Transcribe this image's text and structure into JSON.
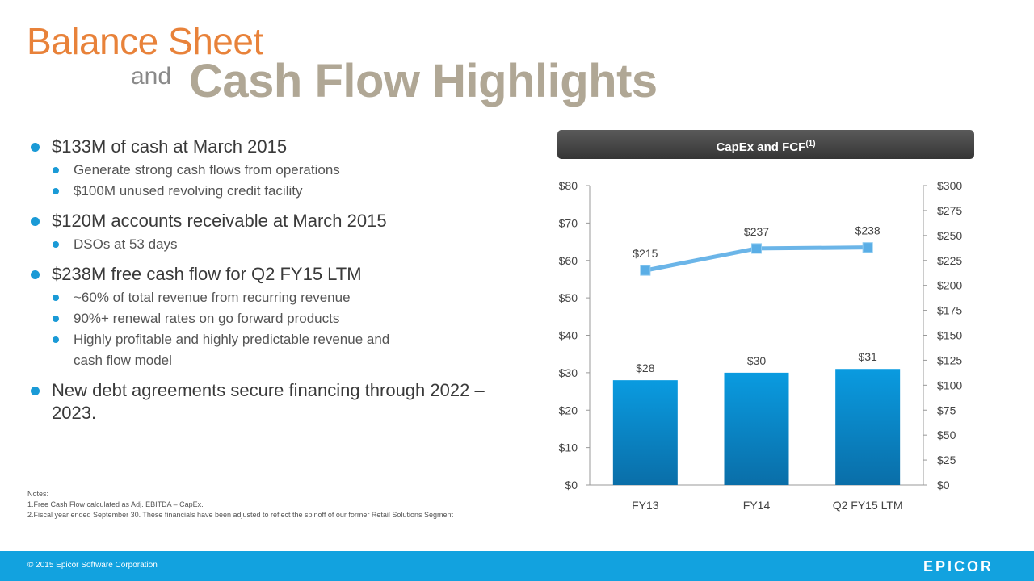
{
  "title": {
    "line1": "Balance Sheet",
    "and": "and",
    "line2": "Cash Flow Highlights"
  },
  "bullets": [
    {
      "text": "$133M of cash at March 2015",
      "sub": [
        "Generate strong cash flows from operations",
        "$100M unused revolving credit facility"
      ]
    },
    {
      "text": "$120M accounts receivable at March 2015",
      "sub": [
        "DSOs at 53 days"
      ]
    },
    {
      "text": "$238M free cash flow for Q2 FY15 LTM",
      "sub": [
        "~60% of total revenue from recurring revenue",
        "90%+ renewal rates on go forward products",
        "Highly profitable and highly predictable revenue and cash flow model"
      ]
    },
    {
      "text": "New debt agreements secure financing through 2022 – 2023.",
      "sub": []
    }
  ],
  "notes": {
    "heading": "Notes:",
    "items": [
      "1.Free Cash Flow calculated as Adj. EBITDA – CapEx.",
      "2.Fiscal year ended September 30.  These financials have been adjusted to reflect the spinoff of our former Retail Solutions Segment"
    ]
  },
  "chart_header": {
    "text": "CapEx and FCF",
    "sup": "(1)"
  },
  "footer": {
    "copyright": "© 2015 Epicor Software Corporation",
    "logo": "EPICOR"
  },
  "colors": {
    "accent_orange": "#e8823a",
    "title_tan": "#b0a795",
    "bar_blue": "#0a9be0",
    "line_blue": "#6bb5e8",
    "footer_blue": "#12a2df"
  },
  "chart_data": {
    "type": "bar",
    "categories": [
      "FY13",
      "FY14",
      "Q2 FY15 LTM"
    ],
    "series": [
      {
        "values": [
          28,
          30,
          31
        ],
        "labels": [
          "$28",
          "$30",
          "$31"
        ],
        "axis": "left",
        "type": "bar"
      },
      {
        "values": [
          215,
          237,
          238
        ],
        "labels": [
          "$215",
          "$237",
          "$238"
        ],
        "axis": "right",
        "type": "line"
      }
    ],
    "ylim_left": [
      0,
      80
    ],
    "ylim_right": [
      0,
      300
    ],
    "yticks_left": [
      "$0",
      "$10",
      "$20",
      "$30",
      "$40",
      "$50",
      "$60",
      "$70",
      "$80"
    ],
    "yticks_right": [
      "$0",
      "$25",
      "$50",
      "$75",
      "$100",
      "$125",
      "$150",
      "$175",
      "$200",
      "$225",
      "$250",
      "$275",
      "$300"
    ],
    "grid": false
  }
}
